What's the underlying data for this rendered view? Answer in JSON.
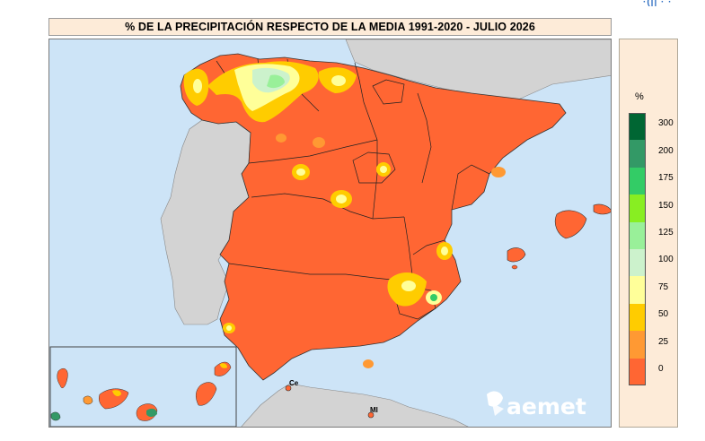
{
  "title": "% DE LA PRECIPITACIÓN RESPECTO DE LA MEDIA 1991-2020 - JULIO 2026",
  "top_right_mark": "·(|| ·  ·",
  "legend": {
    "unit": "%",
    "classes": [
      {
        "label": "300",
        "color": "#006633"
      },
      {
        "label": "200",
        "color": "#339966"
      },
      {
        "label": "175",
        "color": "#33cc66"
      },
      {
        "label": "150",
        "color": "#88ee22"
      },
      {
        "label": "125",
        "color": "#99f099"
      },
      {
        "label": "100",
        "color": "#ccf2cc"
      },
      {
        "label": "75",
        "color": "#ffff99"
      },
      {
        "label": "50",
        "color": "#ffcc00"
      },
      {
        "label": "25",
        "color": "#ff9933"
      },
      {
        "label": "0",
        "color": "#ff6633"
      }
    ],
    "bottom_class_color": "#ff6633"
  },
  "map": {
    "sea_color": "#cde4f7",
    "land_other_color": "#d3d3d3",
    "dominant_color": "#ff6633",
    "cities": [
      {
        "label": "Ce"
      },
      {
        "label": "Ml"
      }
    ]
  },
  "logo": {
    "text": "aemet"
  }
}
